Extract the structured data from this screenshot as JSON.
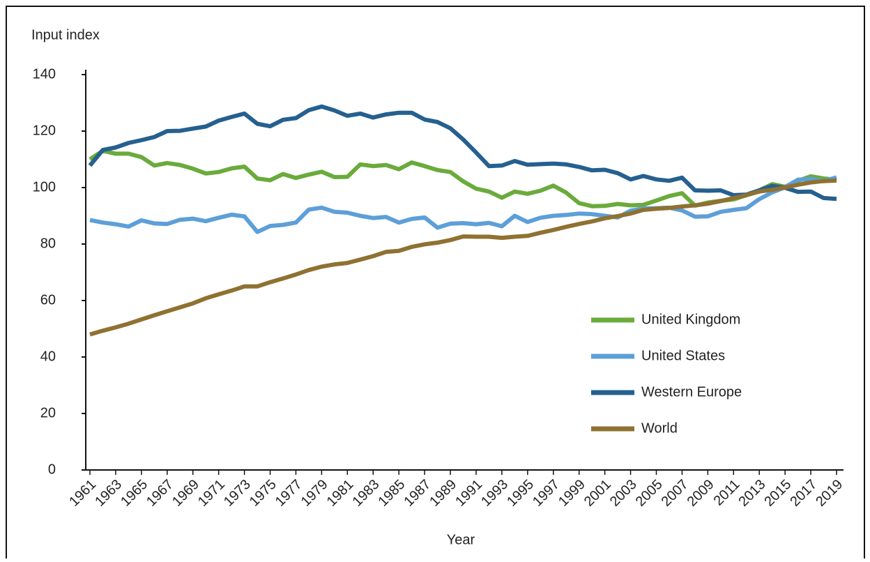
{
  "chart_data": {
    "type": "line",
    "y_label": "Input index",
    "x_label": "Year",
    "x": [
      1961,
      1962,
      1963,
      1964,
      1965,
      1966,
      1967,
      1968,
      1969,
      1970,
      1971,
      1972,
      1973,
      1974,
      1975,
      1976,
      1977,
      1978,
      1979,
      1980,
      1981,
      1982,
      1983,
      1984,
      1985,
      1986,
      1987,
      1988,
      1989,
      1990,
      1991,
      1992,
      1993,
      1994,
      1995,
      1996,
      1997,
      1998,
      1999,
      2000,
      2001,
      2002,
      2003,
      2004,
      2005,
      2006,
      2007,
      2008,
      2009,
      2010,
      2011,
      2012,
      2013,
      2014,
      2015,
      2016,
      2017,
      2018,
      2019
    ],
    "xlim": [
      1961,
      2019
    ],
    "xticks": [
      1961,
      1963,
      1965,
      1967,
      1969,
      1971,
      1973,
      1975,
      1977,
      1979,
      1981,
      1983,
      1985,
      1987,
      1989,
      1991,
      1993,
      1995,
      1997,
      1999,
      2001,
      2003,
      2005,
      2007,
      2009,
      2011,
      2013,
      2015,
      2017,
      2019
    ],
    "ylim": [
      0,
      140
    ],
    "yticks": [
      0,
      20,
      40,
      60,
      80,
      100,
      120,
      140
    ],
    "series": [
      {
        "name": "United Kingdom",
        "color": "#6aab3c",
        "values": [
          110,
          113,
          112,
          112,
          110.8,
          107.8,
          108.7,
          108,
          106.7,
          105,
          105.5,
          106.8,
          107.4,
          103.2,
          102.6,
          104.8,
          103.4,
          104.6,
          105.6,
          103.7,
          103.8,
          108.2,
          107.6,
          108,
          106.5,
          108.9,
          107.6,
          106.2,
          105.5,
          102.2,
          99.6,
          98.6,
          96.4,
          98.6,
          97.8,
          98.9,
          100.7,
          98.2,
          94.5,
          93.4,
          93.5,
          94.2,
          93.7,
          93.9,
          95.4,
          97,
          98,
          93.6,
          94.7,
          95.3,
          95.8,
          97.3,
          99,
          101.2,
          100.3,
          102.4,
          104,
          103.2,
          102.8
        ]
      },
      {
        "name": "United States",
        "color": "#5d9fd8",
        "values": [
          88.5,
          87.6,
          87,
          86.2,
          88.4,
          87.3,
          87.1,
          88.6,
          89,
          88.1,
          89.3,
          90.4,
          89.8,
          84.3,
          86.4,
          86.8,
          87.6,
          92.2,
          92.9,
          91.4,
          91.1,
          90,
          89.2,
          89.6,
          87.6,
          88.9,
          89.4,
          85.8,
          87.2,
          87.4,
          87,
          87.5,
          86.3,
          90,
          87.8,
          89.3,
          90,
          90.3,
          90.8,
          90.6,
          90,
          89.4,
          91.8,
          92.6,
          92.7,
          92.9,
          91.9,
          89.7,
          89.8,
          91.4,
          92.1,
          92.7,
          95.9,
          98.3,
          100.1,
          102.8,
          103,
          102.3,
          103.6
        ]
      },
      {
        "name": "Western Europe",
        "color": "#25608f",
        "values": [
          107.8,
          113.3,
          114.2,
          115.8,
          116.8,
          117.9,
          120,
          120.1,
          120.9,
          121.6,
          123.7,
          125,
          126.2,
          122.6,
          121.7,
          124,
          124.6,
          127.4,
          128.7,
          127.3,
          125.4,
          126.2,
          124.8,
          125.9,
          126.5,
          126.5,
          124.1,
          123.2,
          121,
          117,
          112.4,
          107.6,
          107.8,
          109.4,
          108.1,
          108.3,
          108.5,
          108.2,
          107.3,
          106.1,
          106.3,
          105.1,
          102.9,
          104.1,
          102.9,
          102.4,
          103.5,
          99,
          98.9,
          99,
          97.3,
          97.5,
          99,
          100.6,
          99.9,
          98.5,
          98.6,
          96.3,
          96
        ]
      },
      {
        "name": "World",
        "color": "#8f7131",
        "values": [
          48,
          49.3,
          50.5,
          51.8,
          53.3,
          54.8,
          56.2,
          57.6,
          59,
          60.8,
          62.2,
          63.5,
          65,
          65,
          66.5,
          67.8,
          69.2,
          70.8,
          72,
          72.8,
          73.3,
          74.5,
          75.7,
          77.2,
          77.6,
          79,
          79.9,
          80.5,
          81.4,
          82.7,
          82.6,
          82.6,
          82.2,
          82.6,
          82.9,
          84,
          85,
          86.1,
          87.1,
          88,
          89.1,
          89.9,
          90.8,
          92.1,
          92.5,
          92.8,
          93.3,
          93.7,
          94.3,
          95.2,
          96.3,
          97.3,
          98.6,
          99.2,
          100,
          101,
          101.8,
          102.3,
          102.5
        ]
      }
    ]
  }
}
